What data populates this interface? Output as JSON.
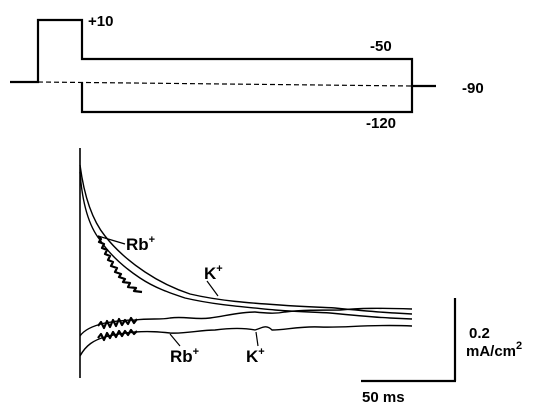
{
  "chart_data": {
    "type": "line",
    "protocol": {
      "levels_mV": {
        "holding": "-90",
        "prepulse": "+10",
        "test_upper": "-50",
        "test_lower": "-120"
      }
    },
    "series": [
      {
        "name": "Rb+",
        "label_base": "Rb",
        "label_sup": "+",
        "test_potential": "-50",
        "kind": "upper"
      },
      {
        "name": "K+",
        "label_base": "K",
        "label_sup": "+",
        "test_potential": "-50",
        "kind": "upper"
      },
      {
        "name": "Rb+",
        "label_base": "Rb",
        "label_sup": "+",
        "test_potential": "-120",
        "kind": "lower"
      },
      {
        "name": "K+",
        "label_base": "K",
        "label_sup": "+",
        "test_potential": "-120",
        "kind": "lower"
      }
    ],
    "scale_bars": {
      "current": {
        "value": "0.2",
        "unit_base": "mA/cm",
        "unit_sup": "2"
      },
      "time": {
        "label": "50 ms"
      }
    }
  }
}
